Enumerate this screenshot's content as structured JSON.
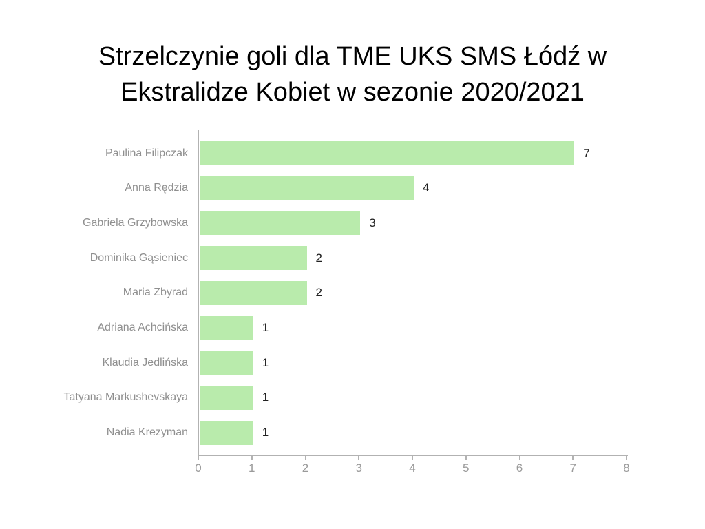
{
  "chart_data": {
    "type": "bar",
    "orientation": "horizontal",
    "title": "Strzelczynie goli dla TME UKS SMS Łódź w Ekstralidze Kobiet w sezonie 2020/2021",
    "title_lines": [
      "Strzelczynie goli dla TME UKS SMS Łódź w",
      "Ekstralidze Kobiet w sezonie 2020/2021"
    ],
    "categories": [
      "Paulina Filipczak",
      "Anna Rędzia",
      "Gabriela Grzybowska",
      "Dominika Gąsieniec",
      "Maria Zbyrad",
      "Adriana Achcińska",
      "Klaudia Jedlińska",
      "Tatyana Markushevskaya",
      "Nadia Krezyman"
    ],
    "values": [
      7,
      4,
      3,
      2,
      2,
      1,
      1,
      1,
      1
    ],
    "value_labels": [
      "7",
      "4",
      "3",
      "2",
      "2",
      "1",
      "1",
      "1",
      "1"
    ],
    "xlabel": "",
    "ylabel": "",
    "xlim": [
      0,
      8
    ],
    "x_ticks": [
      "0",
      "1",
      "2",
      "3",
      "4",
      "5",
      "6",
      "7",
      "8"
    ],
    "grid": false,
    "legend": false,
    "data_labels": true,
    "colors": {
      "bar": "#b9ebac",
      "axis": "#b2b2b2",
      "category_label": "#8f8f8f",
      "tick_label": "#9a9a9a",
      "value_label": "#212121",
      "title": "#000000",
      "background": "#ffffff"
    }
  }
}
